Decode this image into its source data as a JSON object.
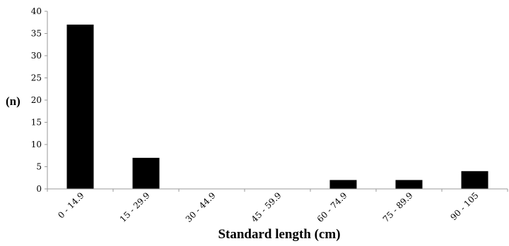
{
  "chart_data": {
    "type": "bar",
    "title": "",
    "xlabel": "Standard length (cm)",
    "ylabel": "(n)",
    "categories": [
      "0 - 14.9",
      "15 - 29.9",
      "30 - 44.9",
      "45 - 59.9",
      "60 - 74.9",
      "75 - 89.9",
      "90 - 105"
    ],
    "values": [
      37,
      7,
      0,
      0,
      2,
      2,
      4
    ],
    "ylim": [
      0,
      40
    ],
    "yticks": [
      0,
      5,
      10,
      15,
      20,
      25,
      30,
      35,
      40
    ],
    "grid": false,
    "legend": "none",
    "bar_color": "#000000",
    "axis_color": "#9a9a9a"
  }
}
